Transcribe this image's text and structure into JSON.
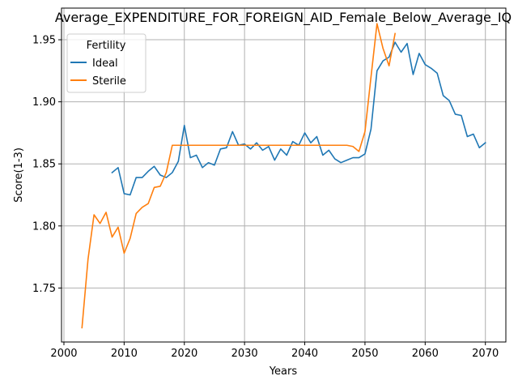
{
  "chart_data": {
    "type": "line",
    "title": "Average_EXPENDITURE_FOR_FOREIGN_AID_Female_Below_Average_IQ",
    "xlabel": "Years",
    "ylabel": "Score(1-3)",
    "xlim": [
      1999.6,
      2073.4
    ],
    "ylim": [
      1.7065,
      1.9755
    ],
    "xticks": [
      2000,
      2010,
      2020,
      2030,
      2040,
      2050,
      2060,
      2070
    ],
    "yticks": [
      1.75,
      1.8,
      1.85,
      1.9,
      1.95
    ],
    "xtick_labels": [
      "2000",
      "2010",
      "2020",
      "2030",
      "2040",
      "2050",
      "2060",
      "2070"
    ],
    "ytick_labels": [
      "1.75",
      "1.80",
      "1.85",
      "1.90",
      "1.95"
    ],
    "grid": true,
    "legend": {
      "title": "Fertility",
      "placement": "top-left"
    },
    "series": [
      {
        "name": "Ideal",
        "color": "#1f77b4",
        "x": [
          2008,
          2009,
          2010,
          2011,
          2012,
          2013,
          2014,
          2015,
          2016,
          2017,
          2018,
          2019,
          2020,
          2021,
          2022,
          2023,
          2024,
          2025,
          2026,
          2027,
          2028,
          2029,
          2030,
          2031,
          2032,
          2033,
          2034,
          2035,
          2036,
          2037,
          2038,
          2039,
          2040,
          2041,
          2042,
          2043,
          2044,
          2045,
          2046,
          2047,
          2048,
          2049,
          2050,
          2051,
          2052,
          2053,
          2054,
          2055,
          2056,
          2057,
          2058,
          2059,
          2060,
          2061,
          2062,
          2063,
          2064,
          2065,
          2066,
          2067,
          2068,
          2069,
          2070
        ],
        "values": [
          1.843,
          1.847,
          1.826,
          1.825,
          1.839,
          1.839,
          1.844,
          1.848,
          1.841,
          1.839,
          1.843,
          1.852,
          1.881,
          1.855,
          1.857,
          1.847,
          1.851,
          1.849,
          1.862,
          1.863,
          1.876,
          1.865,
          1.866,
          1.862,
          1.867,
          1.861,
          1.864,
          1.853,
          1.862,
          1.857,
          1.868,
          1.865,
          1.875,
          1.867,
          1.872,
          1.857,
          1.861,
          1.854,
          1.851,
          1.853,
          1.855,
          1.855,
          1.858,
          1.878,
          1.925,
          1.933,
          1.936,
          1.948,
          1.94,
          1.947,
          1.922,
          1.939,
          1.93,
          1.927,
          1.923,
          1.905,
          1.901,
          1.89,
          1.889,
          1.872,
          1.874,
          1.863,
          1.867
        ]
      },
      {
        "name": "Sterile",
        "color": "#ff7f0e",
        "x": [
          2003,
          2004,
          2005,
          2006,
          2007,
          2008,
          2009,
          2010,
          2011,
          2012,
          2013,
          2014,
          2015,
          2016,
          2017,
          2018,
          2019,
          2020,
          2021,
          2022,
          2023,
          2024,
          2025,
          2026,
          2027,
          2028,
          2029,
          2030,
          2031,
          2032,
          2033,
          2034,
          2035,
          2036,
          2037,
          2038,
          2039,
          2040,
          2041,
          2042,
          2043,
          2044,
          2045,
          2046,
          2047,
          2048,
          2049,
          2050,
          2051,
          2052,
          2053,
          2054,
          2055
        ],
        "values": [
          1.718,
          1.773,
          1.809,
          1.802,
          1.811,
          1.791,
          1.799,
          1.778,
          1.79,
          1.81,
          1.815,
          1.818,
          1.831,
          1.832,
          1.843,
          1.865,
          1.865,
          1.865,
          1.865,
          1.865,
          1.865,
          1.865,
          1.865,
          1.865,
          1.865,
          1.865,
          1.865,
          1.865,
          1.865,
          1.865,
          1.865,
          1.865,
          1.865,
          1.865,
          1.865,
          1.865,
          1.865,
          1.865,
          1.865,
          1.865,
          1.865,
          1.865,
          1.865,
          1.865,
          1.865,
          1.864,
          1.86,
          1.876,
          1.92,
          1.963,
          1.943,
          1.929,
          1.955
        ]
      }
    ]
  }
}
